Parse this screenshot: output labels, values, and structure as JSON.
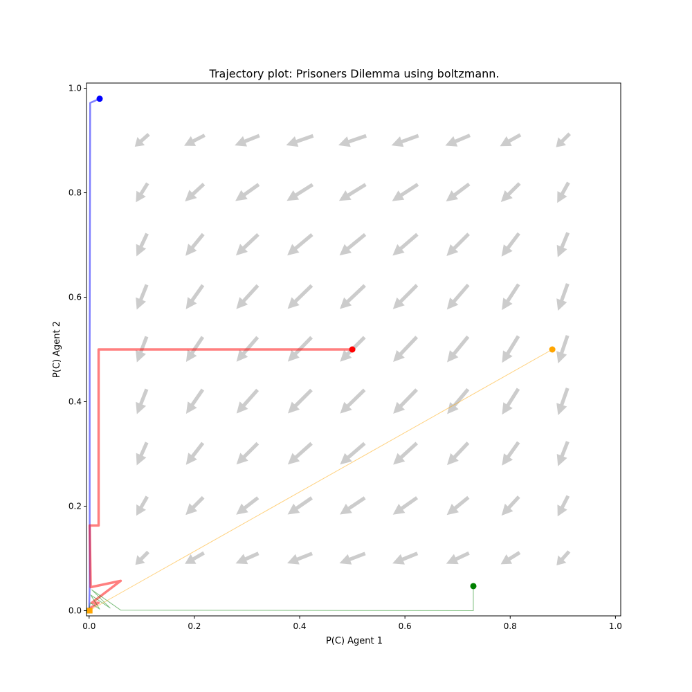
{
  "chart_data": {
    "type": "line",
    "title": "Trajectory plot: Prisoners Dilemma using boltzmann.",
    "xlabel": "P(C) Agent 1",
    "ylabel": "P(C) Agent 2",
    "xlim": [
      -0.005,
      1.01
    ],
    "ylim": [
      -0.01,
      1.01
    ],
    "xticks": [
      0.0,
      0.2,
      0.4,
      0.6,
      0.8,
      1.0
    ],
    "yticks": [
      0.0,
      0.2,
      0.4,
      0.6,
      0.8,
      1.0
    ],
    "xtick_labels": [
      "0.0",
      "0.2",
      "0.4",
      "0.6",
      "0.8",
      "1.0"
    ],
    "ytick_labels": [
      "0.0",
      "0.2",
      "0.4",
      "0.6",
      "0.8",
      "1.0"
    ],
    "grid": false,
    "vector_field": {
      "color": "#cccccc",
      "x": [
        0.1,
        0.2,
        0.3,
        0.4,
        0.5,
        0.6,
        0.7,
        0.8,
        0.9
      ],
      "y": [
        0.1,
        0.2,
        0.3,
        0.4,
        0.5,
        0.6,
        0.7,
        0.8,
        0.9
      ]
    },
    "series": [
      {
        "color": "#0000ff",
        "start": [
          0.02,
          0.98
        ],
        "x": [
          0.02,
          0.002,
          0.001,
          0.001,
          0.001,
          0.0
        ],
        "y": [
          0.98,
          0.972,
          0.5,
          0.16,
          0.05,
          0.0
        ]
      },
      {
        "color": "#ff0000",
        "start": [
          0.5,
          0.5
        ],
        "x": [
          0.5,
          0.018,
          0.018,
          0.001,
          0.003,
          0.06,
          0.005,
          0.018,
          0.002,
          0.0
        ],
        "y": [
          0.5,
          0.5,
          0.163,
          0.163,
          0.045,
          0.057,
          0.015,
          0.015,
          0.005,
          0.0
        ]
      },
      {
        "color": "#008000",
        "start": [
          0.73,
          0.047
        ],
        "x": [
          0.73,
          0.73,
          0.06,
          0.005,
          0.04,
          0.003,
          0.02,
          0.002,
          0.0
        ],
        "y": [
          0.047,
          0.0,
          0.001,
          0.04,
          0.005,
          0.03,
          0.003,
          0.015,
          0.0
        ]
      },
      {
        "color": "#ffa500",
        "start": [
          0.88,
          0.5
        ],
        "x": [
          0.88,
          0.0
        ],
        "y": [
          0.5,
          0.0
        ]
      }
    ]
  }
}
